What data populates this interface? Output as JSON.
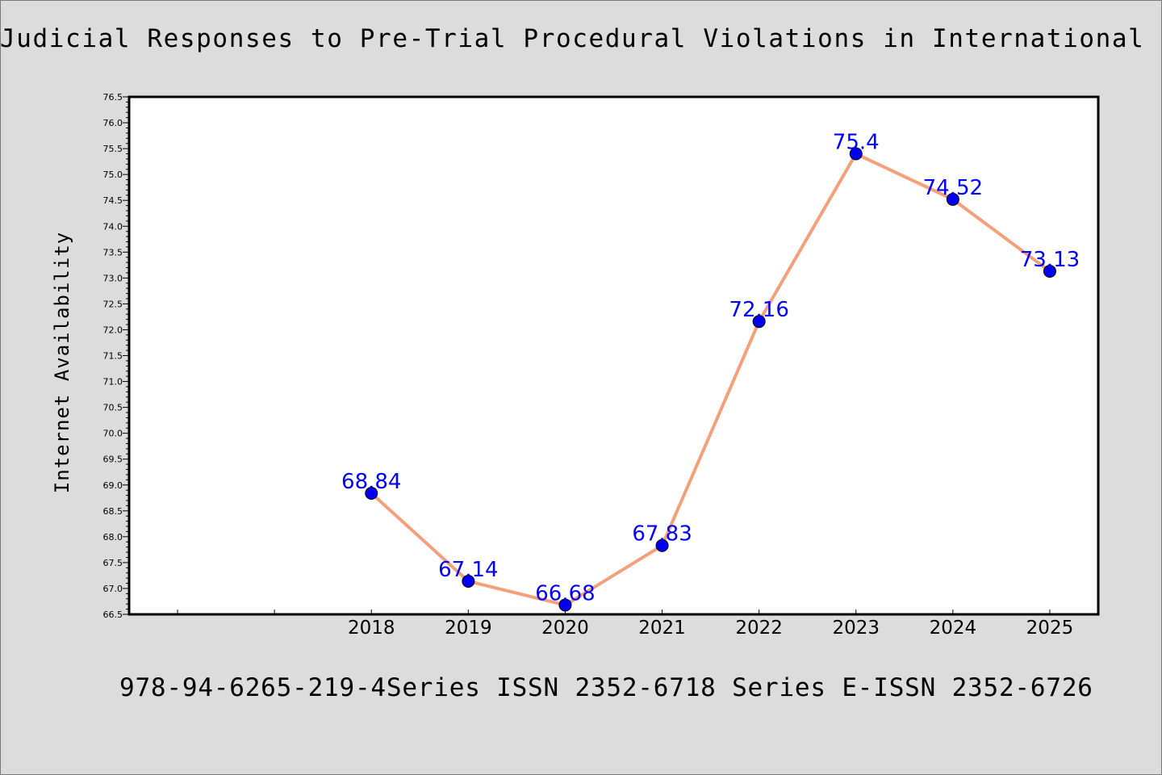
{
  "page": {
    "background": "#dcdcdc",
    "footer": "978-94-6265-219-4Series ISSN 2352-6718 Series E-ISSN 2352-6726"
  },
  "chart_data": {
    "type": "line",
    "title": "Judicial Responses to Pre-Trial Procedural Violations in International Criminal",
    "xlabel": "",
    "ylabel": "Internet Availability",
    "x": [
      "2018",
      "2019",
      "2020",
      "2021",
      "2022",
      "2023",
      "2024",
      "2025"
    ],
    "x_slots_before_data": 2,
    "series": [
      {
        "values": [
          68.84,
          67.14,
          66.68,
          67.83,
          72.16,
          75.4,
          74.52,
          73.13
        ],
        "data_labels": [
          "68.84",
          "67.14",
          "66.68",
          "67.83",
          "72.16",
          "75.4",
          "74.52",
          "73.13"
        ],
        "line_color": "#f4a07a",
        "marker_color": "#0000ee"
      }
    ],
    "ylim": [
      66.5,
      76.5
    ],
    "y_major_step": 0.5,
    "y_minor_step": 0.1,
    "y_tick_labels": [
      "66.5",
      "67.0",
      "67.5",
      "68.0",
      "68.5",
      "69.0",
      "69.5",
      "70.0",
      "70.5",
      "71.0",
      "71.5",
      "72.0",
      "72.5",
      "73.0",
      "73.5",
      "74.0",
      "74.5",
      "75.0",
      "75.5",
      "76.0",
      "76.5"
    ],
    "grid": false,
    "legend": "none",
    "data_label_color": "#0000ff"
  }
}
